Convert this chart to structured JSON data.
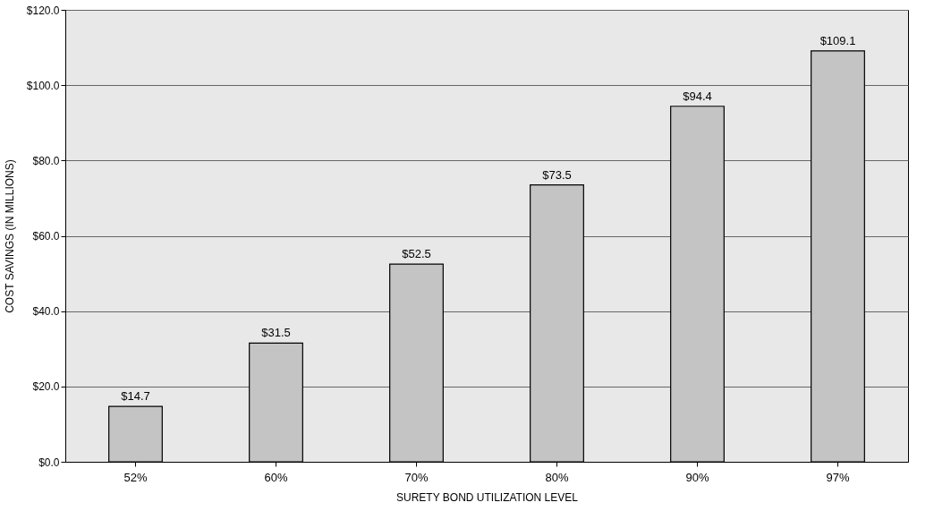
{
  "chart_data": {
    "type": "bar",
    "xlabel": "SURETY BOND UTILIZATION LEVEL",
    "ylabel": "COST SAVINGS (IN MILLIONS)",
    "categories": [
      "52%",
      "60%",
      "70%",
      "80%",
      "90%",
      "97%"
    ],
    "values": [
      14.7,
      31.5,
      52.5,
      73.5,
      94.4,
      109.1
    ],
    "value_labels": [
      "$14.7",
      "$31.5",
      "$52.5",
      "$73.5",
      "$94.4",
      "$109.1"
    ],
    "color": "#c4c4c4",
    "ylim": [
      0,
      120
    ],
    "yticks": [
      {
        "value": 0,
        "label": "$0.0"
      },
      {
        "value": 20,
        "label": "$20.0"
      },
      {
        "value": 40,
        "label": "$40.0"
      },
      {
        "value": 60,
        "label": "$60.0"
      },
      {
        "value": 80,
        "label": "$80.0"
      },
      {
        "value": 100,
        "label": "$100.0"
      },
      {
        "value": 120,
        "label": "$120.0"
      }
    ],
    "grid": "y"
  }
}
